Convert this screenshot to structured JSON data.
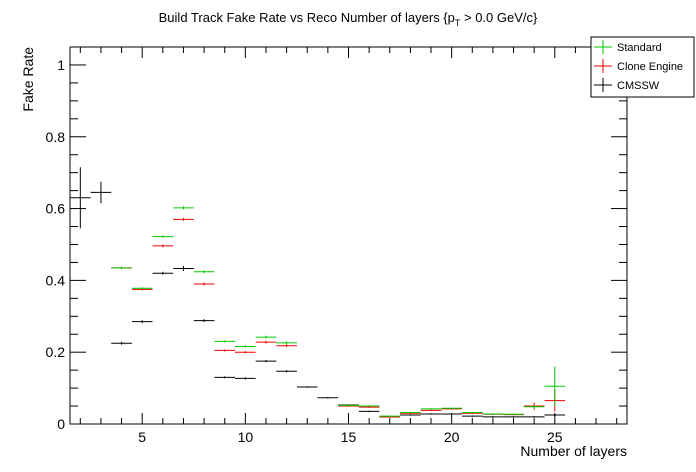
{
  "chart_data": {
    "type": "scatter",
    "title": "Build Track Fake Rate vs Reco Number of layers {p",
    "title_sub": "T",
    "title_end": " > 0.0 GeV/c}",
    "xlabel": "Number of layers",
    "ylabel": "Fake Rate",
    "xlim": [
      1.5,
      28.5
    ],
    "ylim": [
      0,
      1.05
    ],
    "x_ticks": [
      5,
      10,
      15,
      20,
      25
    ],
    "y_ticks": [
      0,
      0.2,
      0.4,
      0.6,
      0.8,
      1
    ],
    "y_tick_labels": [
      "0",
      "0.2",
      "0.4",
      "0.6",
      "0.8",
      "1"
    ],
    "grid": false,
    "legend_position": "top-right",
    "series": [
      {
        "name": "Standard",
        "color": "#00cc00",
        "points": [
          {
            "x": 4,
            "y": 0.435,
            "err": 0.003
          },
          {
            "x": 5,
            "y": 0.378,
            "err": 0.003
          },
          {
            "x": 6,
            "y": 0.522,
            "err": 0.004
          },
          {
            "x": 7,
            "y": 0.602,
            "err": 0.004
          },
          {
            "x": 8,
            "y": 0.424,
            "err": 0.004
          },
          {
            "x": 9,
            "y": 0.23,
            "err": 0.003
          },
          {
            "x": 10,
            "y": 0.216,
            "err": 0.003
          },
          {
            "x": 11,
            "y": 0.242,
            "err": 0.004
          },
          {
            "x": 12,
            "y": 0.226,
            "err": 0.004
          },
          {
            "x": 15,
            "y": 0.052,
            "err": 0.002
          },
          {
            "x": 16,
            "y": 0.05,
            "err": 0.002
          },
          {
            "x": 17,
            "y": 0.022,
            "err": 0.002
          },
          {
            "x": 18,
            "y": 0.032,
            "err": 0.002
          },
          {
            "x": 19,
            "y": 0.042,
            "err": 0.002
          },
          {
            "x": 20,
            "y": 0.044,
            "err": 0.002
          },
          {
            "x": 21,
            "y": 0.032,
            "err": 0.002
          },
          {
            "x": 22,
            "y": 0.028,
            "err": 0.002
          },
          {
            "x": 23,
            "y": 0.027,
            "err": 0.002
          },
          {
            "x": 24,
            "y": 0.048,
            "err": 0.005
          },
          {
            "x": 25,
            "y": 0.105,
            "err": 0.055
          }
        ]
      },
      {
        "name": "Clone Engine",
        "color": "#ee0000",
        "points": [
          {
            "x": 4,
            "y": 0.435,
            "err": 0.003
          },
          {
            "x": 5,
            "y": 0.375,
            "err": 0.003
          },
          {
            "x": 6,
            "y": 0.496,
            "err": 0.004
          },
          {
            "x": 7,
            "y": 0.57,
            "err": 0.004
          },
          {
            "x": 8,
            "y": 0.39,
            "err": 0.004
          },
          {
            "x": 9,
            "y": 0.205,
            "err": 0.003
          },
          {
            "x": 10,
            "y": 0.2,
            "err": 0.003
          },
          {
            "x": 11,
            "y": 0.228,
            "err": 0.004
          },
          {
            "x": 12,
            "y": 0.218,
            "err": 0.004
          },
          {
            "x": 15,
            "y": 0.05,
            "err": 0.002
          },
          {
            "x": 16,
            "y": 0.047,
            "err": 0.002
          },
          {
            "x": 17,
            "y": 0.02,
            "err": 0.002
          },
          {
            "x": 18,
            "y": 0.03,
            "err": 0.002
          },
          {
            "x": 19,
            "y": 0.038,
            "err": 0.002
          },
          {
            "x": 20,
            "y": 0.042,
            "err": 0.002
          },
          {
            "x": 21,
            "y": 0.03,
            "err": 0.002
          },
          {
            "x": 22,
            "y": 0.027,
            "err": 0.002
          },
          {
            "x": 23,
            "y": 0.026,
            "err": 0.002
          },
          {
            "x": 24,
            "y": 0.05,
            "err": 0.01
          },
          {
            "x": 25,
            "y": 0.065,
            "err": 0.03
          }
        ]
      },
      {
        "name": "CMSSW",
        "color": "#000000",
        "points": [
          {
            "x": 2,
            "y": 0.63,
            "err": 0.085
          },
          {
            "x": 3,
            "y": 0.645,
            "err": 0.03
          },
          {
            "x": 4,
            "y": 0.225,
            "err": 0.004
          },
          {
            "x": 5,
            "y": 0.285,
            "err": 0.004
          },
          {
            "x": 6,
            "y": 0.42,
            "err": 0.004
          },
          {
            "x": 7,
            "y": 0.433,
            "err": 0.007
          },
          {
            "x": 8,
            "y": 0.288,
            "err": 0.004
          },
          {
            "x": 9,
            "y": 0.13,
            "err": 0.003
          },
          {
            "x": 10,
            "y": 0.127,
            "err": 0.003
          },
          {
            "x": 11,
            "y": 0.175,
            "err": 0.003
          },
          {
            "x": 12,
            "y": 0.147,
            "err": 0.003
          },
          {
            "x": 13,
            "y": 0.103,
            "err": 0.002
          },
          {
            "x": 14,
            "y": 0.073,
            "err": 0.002
          },
          {
            "x": 15,
            "y": 0.053,
            "err": 0.002
          },
          {
            "x": 16,
            "y": 0.035,
            "err": 0.002
          },
          {
            "x": 17,
            "y": 0.02,
            "err": 0.002
          },
          {
            "x": 18,
            "y": 0.025,
            "err": 0.002
          },
          {
            "x": 19,
            "y": 0.028,
            "err": 0.002
          },
          {
            "x": 20,
            "y": 0.028,
            "err": 0.002
          },
          {
            "x": 21,
            "y": 0.022,
            "err": 0.002
          },
          {
            "x": 22,
            "y": 0.02,
            "err": 0.002
          },
          {
            "x": 23,
            "y": 0.02,
            "err": 0.002
          },
          {
            "x": 24,
            "y": 0.02,
            "err": 0.002
          },
          {
            "x": 25,
            "y": 0.025,
            "err": 0.003
          }
        ]
      }
    ]
  }
}
